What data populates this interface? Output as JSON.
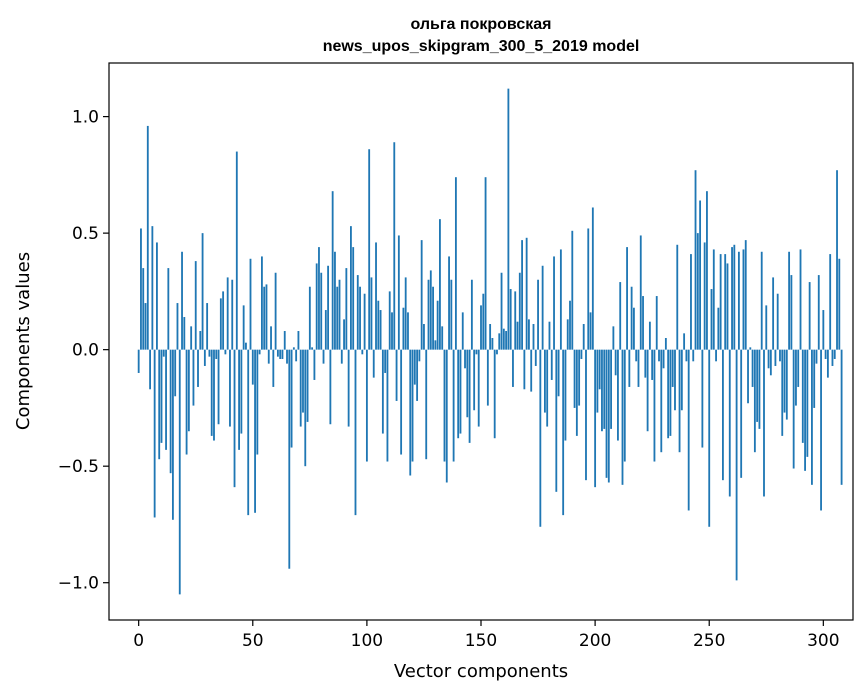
{
  "chart_data": {
    "type": "bar",
    "title": "ольга покровская",
    "subtitle": "news_upos_skipgram_300_5_2019 model",
    "xlabel": "Vector components",
    "ylabel": "Components values",
    "xlim": [
      -13,
      313
    ],
    "ylim": [
      -1.16,
      1.23
    ],
    "xticks": [
      0,
      50,
      100,
      150,
      200,
      250,
      300
    ],
    "xtick_labels": [
      "0",
      "50",
      "100",
      "150",
      "200",
      "250",
      "300"
    ],
    "yticks": [
      -1.0,
      -0.5,
      0.0,
      0.5,
      1.0
    ],
    "ytick_labels": [
      "−1.0",
      "−0.5",
      "0.0",
      "0.5",
      "1.0"
    ],
    "grid": false,
    "bar_color": "#1f77b4",
    "values": [
      -0.1,
      0.52,
      0.35,
      0.2,
      0.96,
      -0.17,
      0.53,
      -0.72,
      0.46,
      -0.47,
      -0.4,
      -0.03,
      -0.43,
      0.35,
      -0.53,
      -0.73,
      -0.2,
      0.2,
      -1.05,
      0.42,
      0.14,
      -0.45,
      -0.35,
      0.1,
      -0.24,
      0.38,
      -0.16,
      0.08,
      0.5,
      -0.07,
      0.2,
      -0.03,
      -0.37,
      -0.39,
      -0.04,
      -0.32,
      0.22,
      0.25,
      -0.02,
      0.31,
      -0.33,
      0.3,
      -0.59,
      0.85,
      -0.43,
      -0.36,
      0.19,
      0.03,
      -0.71,
      0.39,
      -0.15,
      -0.7,
      -0.45,
      -0.02,
      0.4,
      0.27,
      0.28,
      -0.06,
      0.1,
      -0.16,
      0.33,
      -0.03,
      -0.04,
      -0.04,
      0.08,
      -0.06,
      -0.94,
      -0.42,
      0.01,
      -0.05,
      0.08,
      -0.33,
      -0.27,
      -0.5,
      -0.31,
      0.27,
      0.01,
      -0.13,
      0.37,
      0.44,
      0.33,
      -0.06,
      0.17,
      0.36,
      -0.32,
      0.68,
      0.42,
      0.27,
      0.3,
      -0.06,
      0.13,
      0.35,
      -0.33,
      0.53,
      0.44,
      -0.71,
      0.32,
      0.27,
      -0.02,
      0.24,
      -0.48,
      0.86,
      0.31,
      -0.12,
      0.46,
      0.21,
      0.17,
      -0.36,
      -0.1,
      -0.48,
      0.25,
      0.16,
      0.89,
      -0.22,
      0.49,
      -0.45,
      0.18,
      0.31,
      0.16,
      -0.54,
      -0.48,
      -0.15,
      -0.22,
      -0.05,
      0.47,
      0.11,
      -0.47,
      0.3,
      0.34,
      0.27,
      0.04,
      0.21,
      0.56,
      0.1,
      -0.48,
      -0.57,
      0.4,
      0.3,
      -0.48,
      0.74,
      -0.38,
      -0.36,
      0.16,
      -0.08,
      -0.29,
      -0.4,
      0.3,
      -0.26,
      -0.02,
      -0.33,
      0.19,
      0.24,
      0.74,
      -0.24,
      0.11,
      0.05,
      -0.38,
      -0.02,
      0.07,
      0.33,
      0.09,
      0.08,
      1.12,
      0.26,
      -0.16,
      0.25,
      0.12,
      0.33,
      0.47,
      -0.17,
      0.48,
      0.13,
      -0.18,
      0.11,
      -0.07,
      0.3,
      -0.76,
      0.36,
      -0.27,
      -0.33,
      0.12,
      -0.13,
      0.4,
      -0.61,
      -0.2,
      0.43,
      -0.71,
      -0.39,
      0.13,
      0.21,
      0.51,
      -0.25,
      -0.37,
      -0.24,
      -0.04,
      0.11,
      -0.56,
      0.52,
      0.16,
      0.61,
      -0.59,
      -0.27,
      -0.17,
      -0.35,
      -0.34,
      -0.55,
      -0.57,
      -0.34,
      0.1,
      -0.11,
      -0.39,
      0.29,
      -0.58,
      -0.48,
      0.44,
      -0.16,
      0.27,
      0.18,
      -0.05,
      -0.16,
      0.49,
      0.23,
      -0.12,
      -0.35,
      0.12,
      -0.13,
      -0.48,
      0.23,
      -0.05,
      -0.44,
      -0.08,
      0.05,
      -0.38,
      -0.37,
      -0.16,
      -0.26,
      0.45,
      -0.44,
      -0.26,
      0.07,
      -0.05,
      -0.69,
      0.41,
      -0.05,
      0.77,
      0.5,
      0.64,
      -0.42,
      0.46,
      0.68,
      -0.76,
      0.26,
      0.43,
      -0.05,
      0.18,
      0.41,
      -0.56,
      0.41,
      0.37,
      -0.63,
      0.44,
      0.45,
      -0.99,
      0.42,
      -0.55,
      0.43,
      0.47,
      -0.23,
      0.01,
      -0.16,
      -0.44,
      -0.31,
      -0.34,
      0.42,
      -0.63,
      0.19,
      -0.08,
      -0.11,
      0.31,
      -0.07,
      0.24,
      -0.05,
      -0.37,
      -0.27,
      -0.3,
      0.42,
      0.32,
      -0.51,
      -0.24,
      -0.16,
      0.43,
      -0.4,
      -0.52,
      -0.46,
      0.29,
      -0.58,
      -0.25,
      -0.06,
      0.32,
      -0.69,
      0.17,
      -0.04,
      -0.12,
      0.41,
      -0.07,
      -0.04,
      0.77,
      0.39,
      -0.58
    ]
  }
}
